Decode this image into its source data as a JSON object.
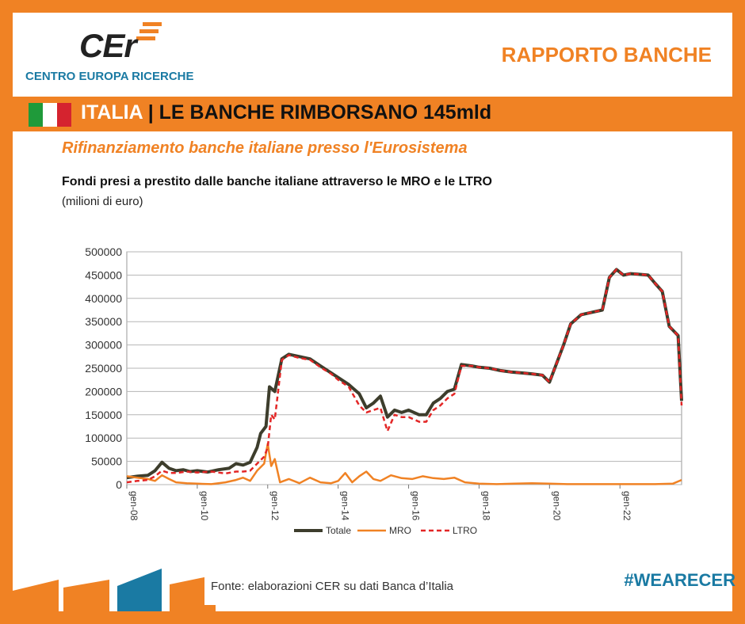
{
  "brand": {
    "logo_text": "CEr",
    "name": "CENTRO EUROPA RICERCHE",
    "report": "RAPPORTO BANCHE",
    "hashtag": "#WEARECER"
  },
  "headline": {
    "country": "ITALIA",
    "separator": " | ",
    "text": "LE BANCHE RIMBORSANO 145mld"
  },
  "subtitle": "Rifinanziamento banche italiane presso l'Eurosistema",
  "chart_title": "Fondi presi a prestito dalle banche italiane attraverso le MRO e le LTRO",
  "chart_unit": "(milioni di euro)",
  "source": "Fonte: elaborazioni CER su dati Banca d’Italia",
  "colors": {
    "accent": "#f08224",
    "blue": "#1a7aa3",
    "totale": "#3d3d2c",
    "mro": "#f08224",
    "ltro": "#e32626"
  },
  "chart_data": {
    "type": "line",
    "title": "",
    "xlabel": "",
    "ylabel": "",
    "ylim": [
      0,
      500000
    ],
    "yticks": [
      0,
      50000,
      100000,
      150000,
      200000,
      250000,
      300000,
      350000,
      400000,
      450000,
      500000
    ],
    "xlim": [
      2008.0,
      2023.75
    ],
    "xticks": [
      {
        "value": 2008,
        "label": "gen-08"
      },
      {
        "value": 2010,
        "label": "gen-10"
      },
      {
        "value": 2012,
        "label": "gen-12"
      },
      {
        "value": 2014,
        "label": "gen-14"
      },
      {
        "value": 2016,
        "label": "gen-16"
      },
      {
        "value": 2018,
        "label": "gen-18"
      },
      {
        "value": 2020,
        "label": "gen-20"
      },
      {
        "value": 2022,
        "label": "gen-22"
      }
    ],
    "grid": true,
    "legend": "bottom",
    "series": [
      {
        "name": "Totale",
        "x": [
          2008.0,
          2008.3,
          2008.6,
          2008.8,
          2009.0,
          2009.2,
          2009.4,
          2009.6,
          2009.8,
          2010.0,
          2010.3,
          2010.6,
          2010.9,
          2011.1,
          2011.3,
          2011.5,
          2011.7,
          2011.8,
          2011.95,
          2012.05,
          2012.2,
          2012.4,
          2012.6,
          2012.9,
          2013.2,
          2013.5,
          2013.8,
          2014.0,
          2014.3,
          2014.6,
          2014.8,
          2015.0,
          2015.2,
          2015.4,
          2015.6,
          2015.8,
          2016.0,
          2016.3,
          2016.5,
          2016.7,
          2016.9,
          2017.1,
          2017.3,
          2017.5,
          2017.8,
          2018.0,
          2018.3,
          2018.6,
          2018.9,
          2019.2,
          2019.5,
          2019.8,
          2020.0,
          2020.2,
          2020.4,
          2020.6,
          2020.9,
          2021.2,
          2021.5,
          2021.7,
          2021.9,
          2022.1,
          2022.3,
          2022.5,
          2022.8,
          2023.0,
          2023.2,
          2023.4,
          2023.65,
          2023.75
        ],
        "values": [
          15000,
          18000,
          20000,
          30000,
          48000,
          35000,
          30000,
          32000,
          28000,
          30000,
          27000,
          32000,
          35000,
          45000,
          42000,
          48000,
          80000,
          110000,
          125000,
          210000,
          200000,
          270000,
          280000,
          275000,
          270000,
          255000,
          240000,
          230000,
          215000,
          195000,
          165000,
          175000,
          190000,
          145000,
          160000,
          155000,
          160000,
          150000,
          150000,
          175000,
          185000,
          200000,
          205000,
          258000,
          255000,
          252000,
          250000,
          245000,
          242000,
          240000,
          238000,
          235000,
          220000,
          260000,
          300000,
          345000,
          365000,
          370000,
          375000,
          445000,
          462000,
          450000,
          453000,
          452000,
          450000,
          432000,
          415000,
          340000,
          320000,
          180000
        ]
      },
      {
        "name": "MRO",
        "x": [
          2008.0,
          2008.3,
          2008.6,
          2008.8,
          2009.0,
          2009.2,
          2009.4,
          2009.7,
          2010.0,
          2010.4,
          2010.8,
          2011.1,
          2011.3,
          2011.5,
          2011.7,
          2011.9,
          2012.0,
          2012.1,
          2012.2,
          2012.35,
          2012.6,
          2012.9,
          2013.2,
          2013.5,
          2013.8,
          2014.0,
          2014.2,
          2014.4,
          2014.6,
          2014.8,
          2015.0,
          2015.2,
          2015.5,
          2015.8,
          2016.1,
          2016.4,
          2016.7,
          2017.0,
          2017.3,
          2017.6,
          2018.0,
          2018.5,
          2019.0,
          2019.5,
          2020.0,
          2020.5,
          2021.0,
          2021.5,
          2022.0,
          2022.5,
          2023.0,
          2023.5,
          2023.75
        ],
        "values": [
          18000,
          15000,
          12000,
          8000,
          20000,
          12000,
          5000,
          3000,
          2000,
          1000,
          5000,
          10000,
          15000,
          8000,
          30000,
          45000,
          88000,
          40000,
          55000,
          5000,
          12000,
          3000,
          15000,
          5000,
          3000,
          8000,
          25000,
          5000,
          18000,
          28000,
          12000,
          8000,
          20000,
          14000,
          12000,
          18000,
          14000,
          12000,
          15000,
          5000,
          2000,
          1000,
          2000,
          3000,
          2000,
          1000,
          1000,
          1000,
          1000,
          1000,
          1000,
          2000,
          10000
        ]
      },
      {
        "name": "LTRO",
        "x": [
          2008.0,
          2008.3,
          2008.6,
          2008.8,
          2009.0,
          2009.2,
          2009.4,
          2009.7,
          2010.0,
          2010.4,
          2010.8,
          2011.1,
          2011.3,
          2011.5,
          2011.7,
          2011.9,
          2012.0,
          2012.1,
          2012.2,
          2012.4,
          2012.6,
          2012.9,
          2013.2,
          2013.5,
          2013.8,
          2014.0,
          2014.3,
          2014.6,
          2014.8,
          2015.0,
          2015.2,
          2015.4,
          2015.6,
          2015.8,
          2016.0,
          2016.3,
          2016.5,
          2016.7,
          2016.9,
          2017.1,
          2017.3,
          2017.5,
          2017.8,
          2018.0,
          2018.3,
          2018.6,
          2018.9,
          2019.2,
          2019.5,
          2019.8,
          2020.0,
          2020.2,
          2020.4,
          2020.6,
          2020.9,
          2021.2,
          2021.5,
          2021.7,
          2021.9,
          2022.1,
          2022.3,
          2022.5,
          2022.8,
          2023.0,
          2023.2,
          2023.4,
          2023.65,
          2023.75
        ],
        "values": [
          5000,
          8000,
          10000,
          18000,
          30000,
          25000,
          25000,
          28000,
          26000,
          28000,
          24000,
          28000,
          28000,
          30000,
          45000,
          60000,
          80000,
          150000,
          140000,
          268000,
          278000,
          272000,
          268000,
          252000,
          238000,
          225000,
          210000,
          170000,
          155000,
          160000,
          165000,
          115000,
          150000,
          145000,
          145000,
          135000,
          135000,
          160000,
          170000,
          185000,
          195000,
          255000,
          255000,
          252000,
          250000,
          245000,
          242000,
          240000,
          238000,
          235000,
          220000,
          260000,
          300000,
          345000,
          365000,
          370000,
          375000,
          445000,
          462000,
          450000,
          453000,
          452000,
          450000,
          432000,
          415000,
          340000,
          320000,
          170000
        ]
      }
    ]
  }
}
